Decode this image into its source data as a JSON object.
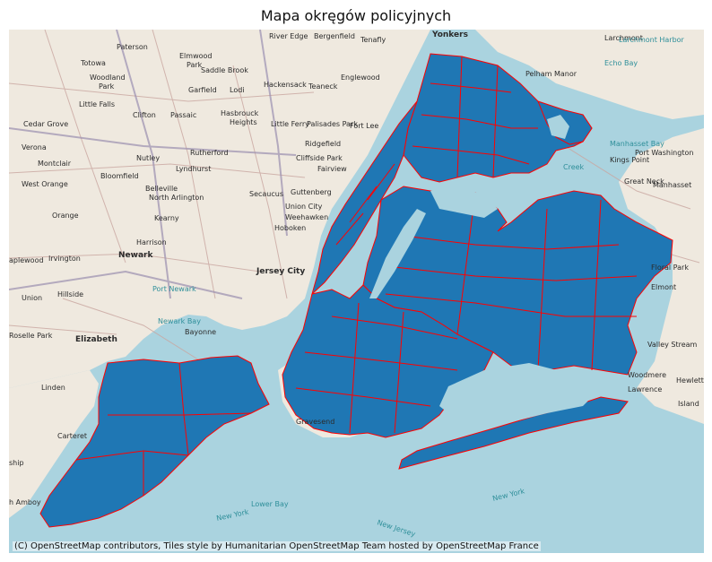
{
  "title": "Mapa okręgów policyjnych",
  "attribution": "(C) OpenStreetMap contributors, Tiles style by Humanitarian OpenStreetMap Team hosted by OpenStreetMap France",
  "colors": {
    "water": "#aad3df",
    "land": "#efe9df",
    "fill": "#1f77b4",
    "border": "#ff0000"
  },
  "places": {
    "paterson": "Paterson",
    "totowa": "Totowa",
    "woodland": "Woodland",
    "park": "Park",
    "little_falls": "Little Falls",
    "cedar_grove": "Cedar Grove",
    "clifton": "Clifton",
    "passaic": "Passaic",
    "elmwood": "Elmwood",
    "park2": "Park",
    "saddle_brook": "Saddle Brook",
    "garfield": "Garfield",
    "lodi": "Lodi",
    "hackensack": "Hackensack",
    "teaneck": "Teaneck",
    "englewood": "Englewood",
    "river_edge": "River Edge",
    "bergenfield": "Bergenfield",
    "tenafly": "Tenafly",
    "yonkers": "Yonkers",
    "larchmont": "Larchmont",
    "larchmont_harbor": "Larchmont Harbor",
    "echo_bay": "Echo Bay",
    "pelham_manor": "Pelham Manor",
    "verona": "Verona",
    "montclair": "Montclair",
    "nutley": "Nutley",
    "rutherford": "Rutherford",
    "hasbrouck": "Hasbrouck",
    "heights": "Heights",
    "little_ferry": "Little Ferry",
    "palisades_park": "Palisades Park",
    "fort_lee": "Fort Lee",
    "ridgefield": "Ridgefield",
    "cliffside_park": "Cliffside Park",
    "fairview": "Fairview",
    "manhasset_bay": "Manhasset Bay",
    "kings_point": "Kings Point",
    "port_washington": "Port Washington",
    "west_orange": "West Orange",
    "bloomfield": "Bloomfield",
    "belleville": "Belleville",
    "north_arlington": "North Arlington",
    "lyndhurst": "Lyndhurst",
    "secaucus": "Secaucus",
    "guttenberg": "Guttenberg",
    "union_city": "Union City",
    "weehawken": "Weehawken",
    "great_neck": "Great Neck",
    "manhasset": "Manhasset",
    "orange": "Orange",
    "kearny": "Kearny",
    "harrison": "Harrison",
    "newark": "Newark",
    "hoboken": "Hoboken",
    "jersey_city": "Jersey City",
    "maplewood": "aplewood",
    "irvington": "Irvington",
    "union": "Union",
    "hillside": "Hillside",
    "port_newark": "Port Newark",
    "newark_bay": "Newark Bay",
    "bayonne": "Bayonne",
    "roselle_park": "Roselle Park",
    "elizabeth": "Elizabeth",
    "linden": "Linden",
    "carteret": "Carteret",
    "ship": "ship",
    "perth_amboy": "h Amboy",
    "gravesend": "Gravesend",
    "lower_bay": "Lower Bay",
    "new_york_1": "New York",
    "new_york_2": "New York",
    "new_jersey": "New Jersey",
    "floral_park": "Floral Park",
    "elmont": "Elmont",
    "valley_stream": "Valley Stream",
    "hewlett": "Hewlett",
    "island": "Island",
    "lawrence": "Lawrence",
    "woodmere": "Woodmere",
    "great_neck_e": "Great Neck",
    "creek": "Creek"
  }
}
